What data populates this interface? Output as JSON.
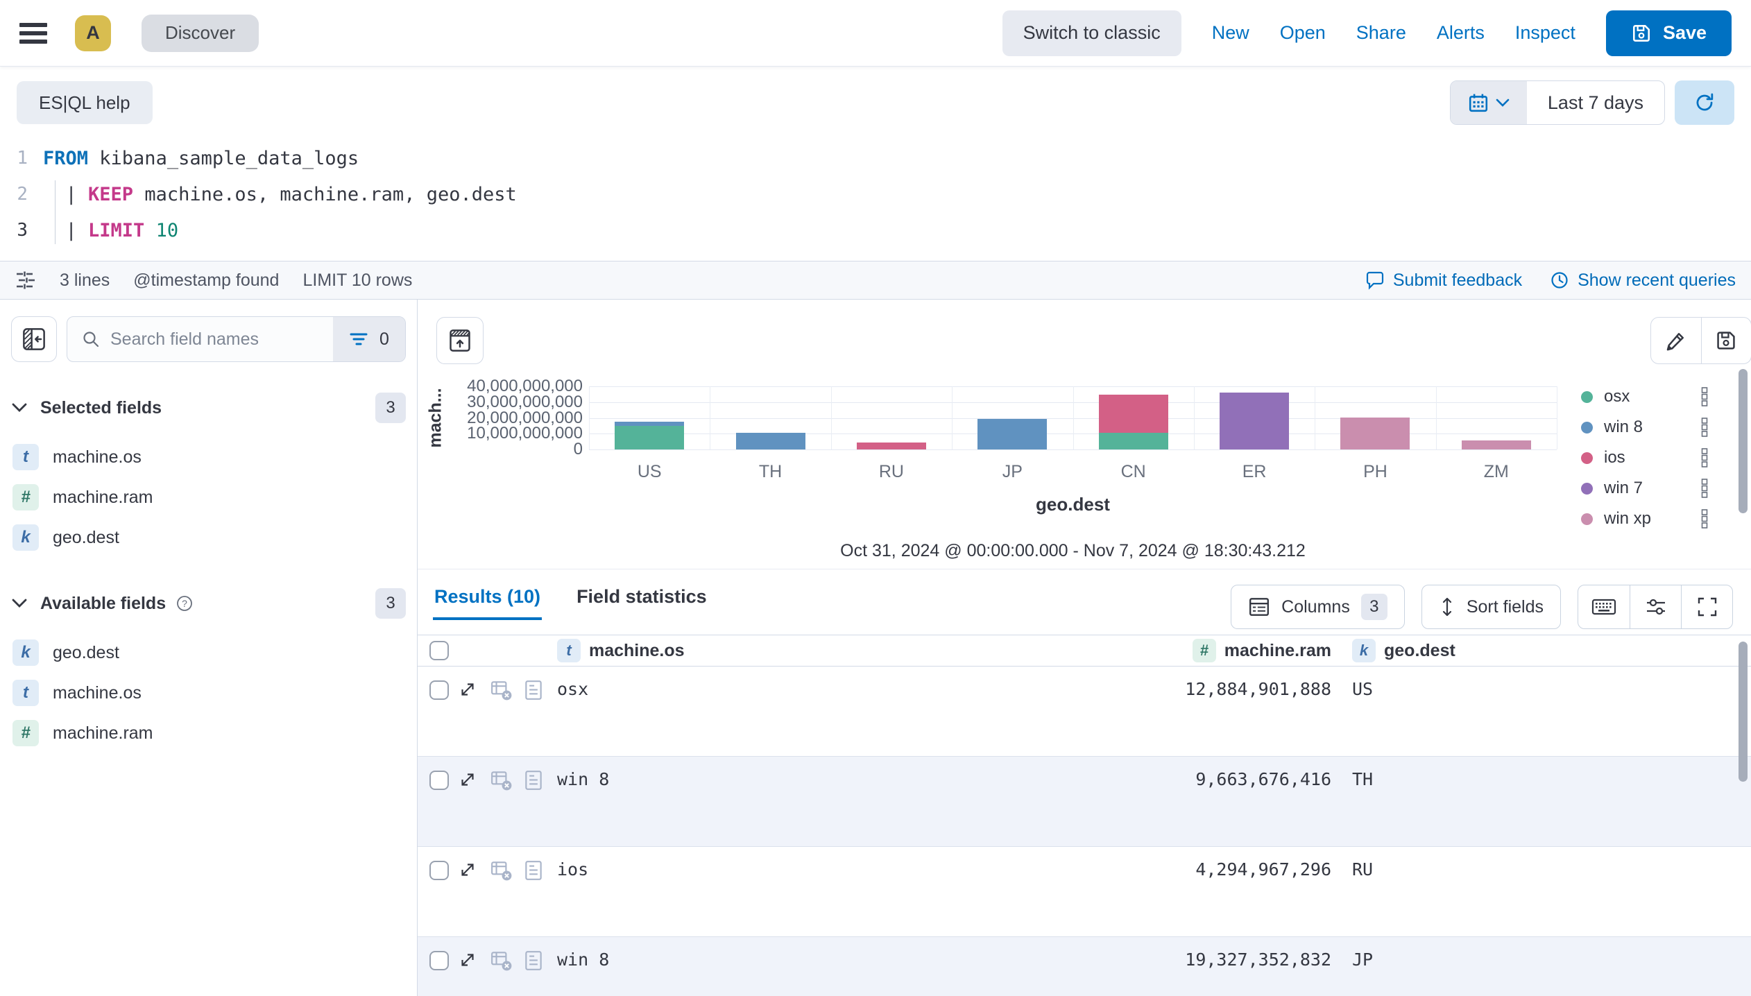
{
  "header": {
    "avatar": "A",
    "breadcrumb": "Discover",
    "switch_classic": "Switch to classic",
    "links": [
      "New",
      "Open",
      "Share",
      "Alerts",
      "Inspect"
    ],
    "save": "Save"
  },
  "querybar": {
    "help": "ES|QL help",
    "time_range": "Last 7 days"
  },
  "editor": {
    "lines": [
      {
        "num": "1",
        "active": false,
        "tokens": [
          {
            "t": "FROM",
            "c": "kw"
          },
          {
            "t": " kibana_sample_data_logs",
            "c": "pl"
          }
        ]
      },
      {
        "num": "2",
        "active": false,
        "tokens": [
          {
            "t": "  | ",
            "c": "pl"
          },
          {
            "t": "KEEP",
            "c": "fn"
          },
          {
            "t": " machine.os, machine.ram, geo.dest",
            "c": "pl"
          }
        ]
      },
      {
        "num": "3",
        "active": true,
        "tokens": [
          {
            "t": "  | ",
            "c": "pl"
          },
          {
            "t": "LIMIT",
            "c": "fn"
          },
          {
            "t": " ",
            "c": "pl"
          },
          {
            "t": "10",
            "c": "num"
          }
        ]
      }
    ]
  },
  "status": {
    "lines": "3 lines",
    "timestamp": "@timestamp found",
    "limit": "LIMIT 10 rows",
    "feedback": "Submit feedback",
    "recent": "Show recent queries"
  },
  "sidebar": {
    "search_placeholder": "Search field names",
    "filter_count": "0",
    "selected": {
      "label": "Selected fields",
      "count": "3",
      "items": [
        {
          "type": "t",
          "name": "machine.os"
        },
        {
          "type": "#",
          "name": "machine.ram"
        },
        {
          "type": "k",
          "name": "geo.dest"
        }
      ]
    },
    "available": {
      "label": "Available fields",
      "count": "3",
      "items": [
        {
          "type": "k",
          "name": "geo.dest"
        },
        {
          "type": "t",
          "name": "machine.os"
        },
        {
          "type": "#",
          "name": "machine.ram"
        }
      ]
    }
  },
  "chart_data": {
    "type": "bar",
    "stacked": true,
    "title": "",
    "xlabel": "geo.dest",
    "ylabel": "machine.ram",
    "ylabel_display": "mach...",
    "ylim": [
      0,
      40000000000
    ],
    "grid": true,
    "legend_position": "right",
    "yticks": [
      "40,000,000,000",
      "30,000,000,000",
      "20,000,000,000",
      "10,000,000,000",
      "0"
    ],
    "categories": [
      "US",
      "TH",
      "RU",
      "JP",
      "CN",
      "ER",
      "PH",
      "ZM"
    ],
    "series": [
      {
        "name": "osx",
        "color": "#54B399",
        "values": [
          15100000000,
          0,
          0,
          0,
          10700000000,
          0,
          0,
          0
        ]
      },
      {
        "name": "win 8",
        "color": "#6092C0",
        "values": [
          2300000000,
          10700000000,
          0,
          19400000000,
          0,
          0,
          0,
          0
        ]
      },
      {
        "name": "ios",
        "color": "#D36086",
        "values": [
          0,
          0,
          4600000000,
          0,
          24100000000,
          0,
          0,
          0
        ]
      },
      {
        "name": "win 7",
        "color": "#9170B8",
        "values": [
          0,
          0,
          0,
          0,
          0,
          36100000000,
          0,
          0
        ]
      },
      {
        "name": "win xp",
        "color": "#CA8EAE",
        "values": [
          0,
          0,
          0,
          0,
          0,
          0,
          20400000000,
          5700000000
        ]
      }
    ],
    "footnote": "Oct 31, 2024 @ 00:00:00.000 - Nov 7, 2024 @ 18:30:43.212"
  },
  "results": {
    "tabs": [
      {
        "label": "Results (10)",
        "active": true
      },
      {
        "label": "Field statistics",
        "active": false
      }
    ],
    "columns_label": "Columns",
    "columns_count": "3",
    "sort_label": "Sort fields",
    "table": {
      "columns": [
        {
          "type": "t",
          "label": "machine.os"
        },
        {
          "type": "#",
          "label": "machine.ram"
        },
        {
          "type": "k",
          "label": "geo.dest"
        }
      ],
      "rows": [
        {
          "machine_os": "osx",
          "machine_ram": "12,884,901,888",
          "geo_dest": "US"
        },
        {
          "machine_os": "win 8",
          "machine_ram": "9,663,676,416",
          "geo_dest": "TH"
        },
        {
          "machine_os": "ios",
          "machine_ram": "4,294,967,296",
          "geo_dest": "RU"
        },
        {
          "machine_os": "win 8",
          "machine_ram": "19,327,352,832",
          "geo_dest": "JP"
        }
      ]
    }
  }
}
